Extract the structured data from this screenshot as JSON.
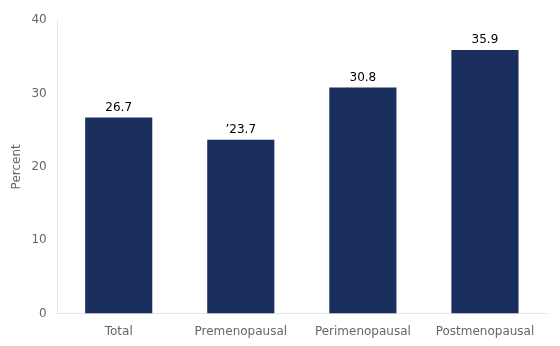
{
  "chart_data": {
    "type": "bar",
    "categories": [
      "Total",
      "Premenopausal",
      "Perimenopausal",
      "Postmenopausal"
    ],
    "values": [
      26.7,
      23.7,
      30.8,
      35.9
    ],
    "value_labels": [
      "26.7",
      "’23.7",
      "30.8",
      "35.9"
    ],
    "data_labels": true,
    "color": "#1b2f5e",
    "ylabel": "Percent",
    "ylim": [
      0,
      40
    ],
    "yticks": [
      0,
      10,
      20,
      30,
      40
    ],
    "grid": false
  }
}
